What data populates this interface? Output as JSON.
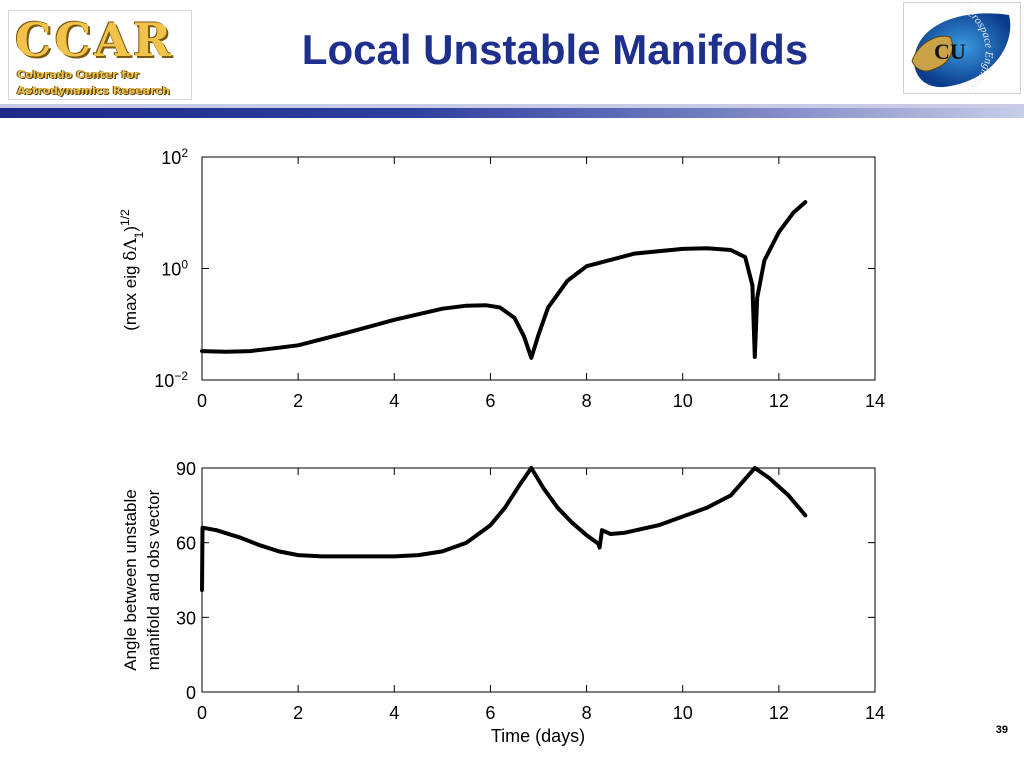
{
  "slide": {
    "title": "Local Unstable Manifolds",
    "page_number": "39",
    "logo_left": {
      "mark": "CCAR",
      "line1": "Colorado Center for",
      "line2": "Astrodynamics Research"
    },
    "logo_right": {
      "mark": "CU",
      "text": "Aerospace Engineering"
    },
    "colors": {
      "title": "#1f2f8c",
      "header_bar": "#1c2a88",
      "curve": "#000000"
    }
  },
  "chart_data": [
    {
      "type": "line",
      "yscale": "log",
      "xlim": [
        0,
        14
      ],
      "ylim": [
        0.01,
        100
      ],
      "xticks": [
        "0",
        "2",
        "4",
        "6",
        "8",
        "10",
        "12",
        "14"
      ],
      "yticks": [
        {
          "value": 0.01,
          "base": "10",
          "exp": "−2"
        },
        {
          "value": 1,
          "base": "10",
          "exp": "0"
        },
        {
          "value": 100,
          "base": "10",
          "exp": "2"
        }
      ],
      "ylabel": {
        "prefix": "(max eig ",
        "delta": "δΛ",
        "sub": "1",
        "close": ")",
        "sup": "1/2"
      },
      "xlabel": "",
      "series": [
        {
          "x": [
            0,
            0.5,
            1,
            1.5,
            2,
            3,
            4,
            5,
            5.5,
            5.9,
            6.2,
            6.5,
            6.7,
            6.85,
            7.0,
            7.2,
            7.6,
            8,
            9,
            10,
            10.5,
            11,
            11.3,
            11.45,
            11.5,
            11.55,
            11.7,
            12,
            12.3,
            12.55
          ],
          "y": [
            0.033,
            0.032,
            0.033,
            0.037,
            0.042,
            0.07,
            0.12,
            0.19,
            0.215,
            0.22,
            0.2,
            0.13,
            0.06,
            0.025,
            0.065,
            0.2,
            0.6,
            1.1,
            1.85,
            2.25,
            2.3,
            2.15,
            1.6,
            0.5,
            0.026,
            0.3,
            1.4,
            4.5,
            10.0,
            15.5
          ]
        }
      ]
    },
    {
      "type": "line",
      "xlim": [
        0,
        14
      ],
      "ylim": [
        0,
        90
      ],
      "xticks": [
        "0",
        "2",
        "4",
        "6",
        "8",
        "10",
        "12",
        "14"
      ],
      "yticks": [
        "0",
        "30",
        "60",
        "90"
      ],
      "xlabel": "Time (days)",
      "ylabel_lines": [
        "Angle between unstable",
        "manifold and obs vector"
      ],
      "series": [
        {
          "x": [
            0,
            0.01,
            0.3,
            0.8,
            1.2,
            1.6,
            2,
            2.5,
            3,
            3.5,
            4,
            4.5,
            5,
            5.5,
            6,
            6.3,
            6.6,
            6.85,
            7.1,
            7.4,
            7.7,
            8,
            8.25,
            8.27,
            8.32,
            8.5,
            8.8,
            9.5,
            10.5,
            11,
            11.5,
            11.8,
            12.2,
            12.55
          ],
          "y": [
            41,
            66,
            65,
            62,
            59,
            56.5,
            55,
            54.5,
            54.5,
            54.5,
            54.5,
            55,
            56.5,
            60,
            67,
            74,
            83,
            90,
            82,
            74,
            68,
            63,
            59.5,
            58,
            65,
            63.5,
            64,
            67,
            74,
            79,
            90,
            86,
            79,
            71
          ]
        }
      ]
    }
  ]
}
